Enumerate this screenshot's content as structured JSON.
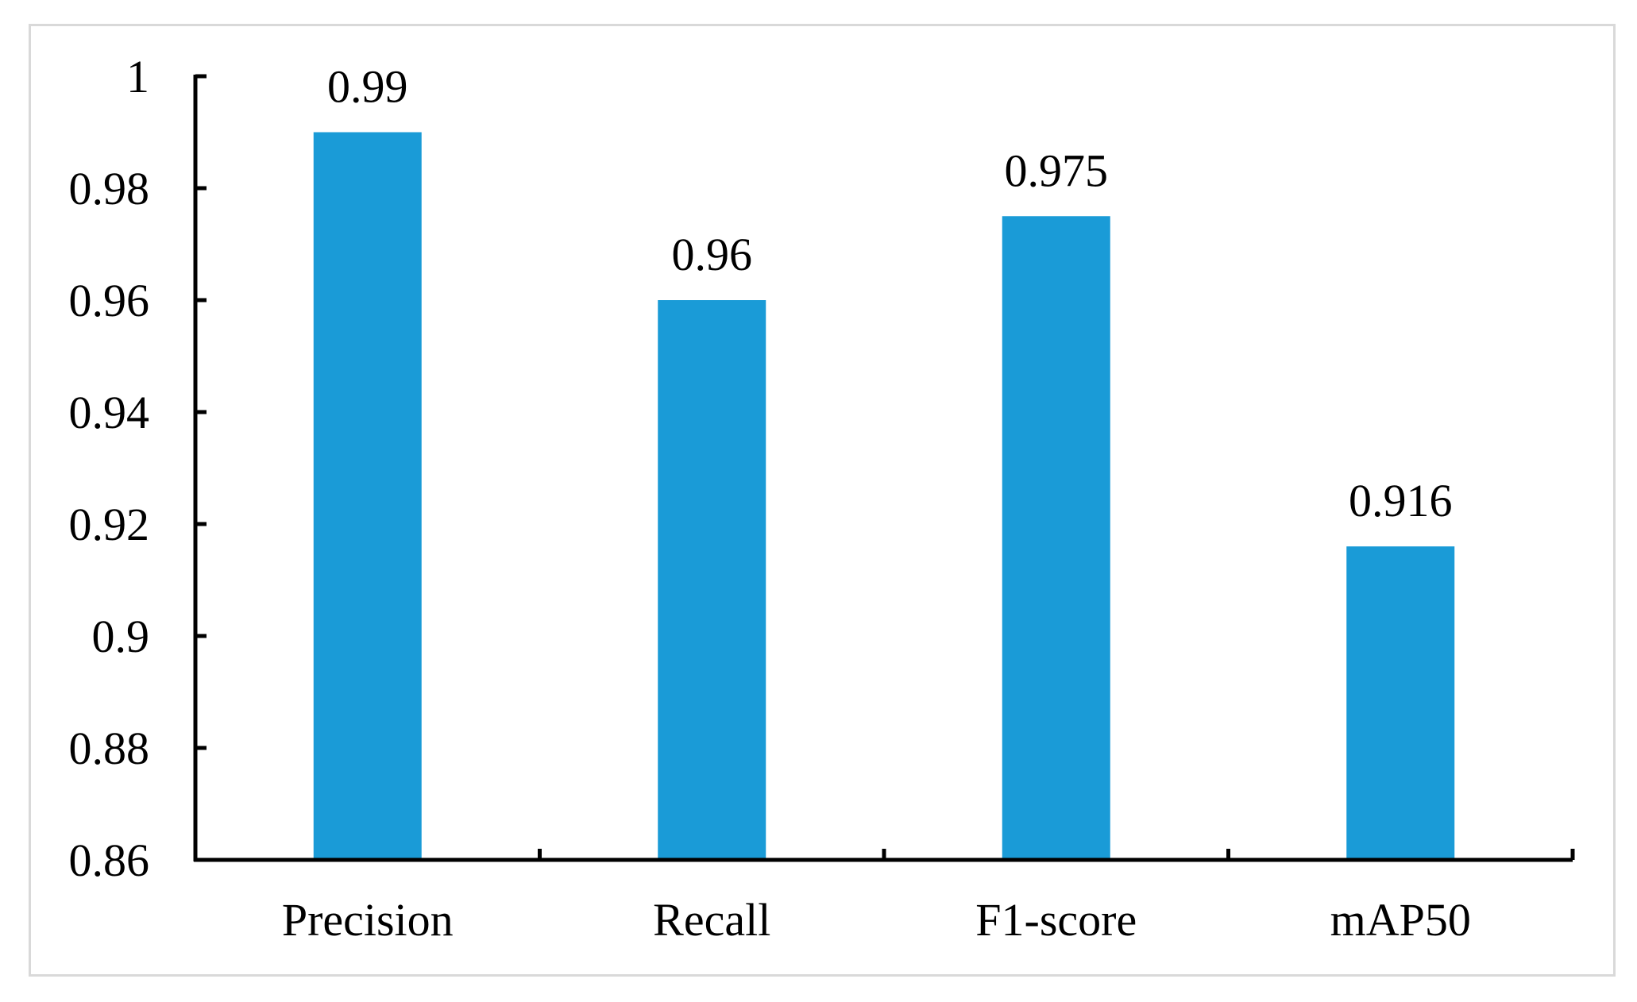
{
  "chart_data": {
    "type": "bar",
    "categories": [
      "Precision",
      "Recall",
      "F1-score",
      "mAP50"
    ],
    "values": [
      0.99,
      0.96,
      0.975,
      0.916
    ],
    "data_labels": [
      "0.99",
      "0.96",
      "0.975",
      "0.916"
    ],
    "title": "",
    "xlabel": "",
    "ylabel": "",
    "ylim": [
      0.86,
      1
    ],
    "y_ticks": [
      0.86,
      0.88,
      0.9,
      0.92,
      0.94,
      0.96,
      0.98,
      1
    ],
    "y_tick_labels": [
      "0.86",
      "0.88",
      "0.9",
      "0.92",
      "0.94",
      "0.96",
      "0.98",
      "1"
    ],
    "grid": false,
    "legend": "none",
    "bar_color": "#1a9bd7"
  }
}
